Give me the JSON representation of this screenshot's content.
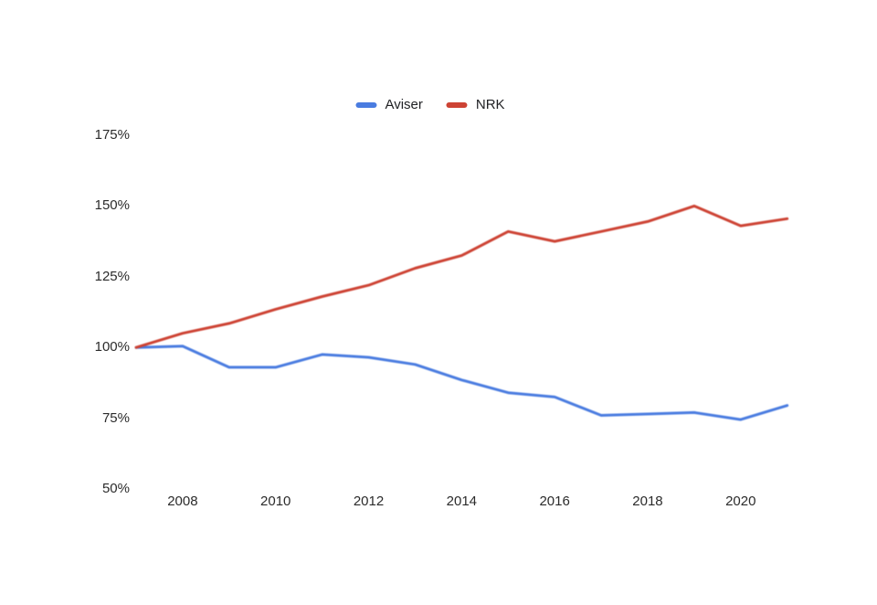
{
  "chart_data": {
    "type": "line",
    "title": "",
    "xlabel": "",
    "ylabel": "",
    "x": [
      2007,
      2008,
      2009,
      2010,
      2011,
      2012,
      2013,
      2014,
      2015,
      2016,
      2017,
      2018,
      2019,
      2020,
      2021
    ],
    "series": [
      {
        "name": "Aviser",
        "color": "#4a7ce0",
        "values": [
          100,
          100.5,
          93,
          93,
          97.5,
          96.5,
          94,
          88.5,
          84,
          82.5,
          76,
          76.5,
          77,
          74.5,
          79.5
        ]
      },
      {
        "name": "NRK",
        "color": "#cd4334",
        "values": [
          100,
          105,
          108.5,
          113.5,
          118,
          122,
          128,
          132.5,
          141,
          137.5,
          141,
          144.5,
          150,
          143,
          145.5
        ]
      }
    ],
    "ylim": [
      50,
      175
    ],
    "xlim": [
      2007,
      2021
    ],
    "yticks": [
      175,
      150,
      125,
      100,
      75,
      50
    ],
    "ytick_suffix": "%",
    "xticks": [
      2008,
      2010,
      2012,
      2014,
      2016,
      2018,
      2020
    ],
    "legend_position": "top-center",
    "grid": false,
    "axis_lines": false,
    "background": "#ffffff"
  }
}
